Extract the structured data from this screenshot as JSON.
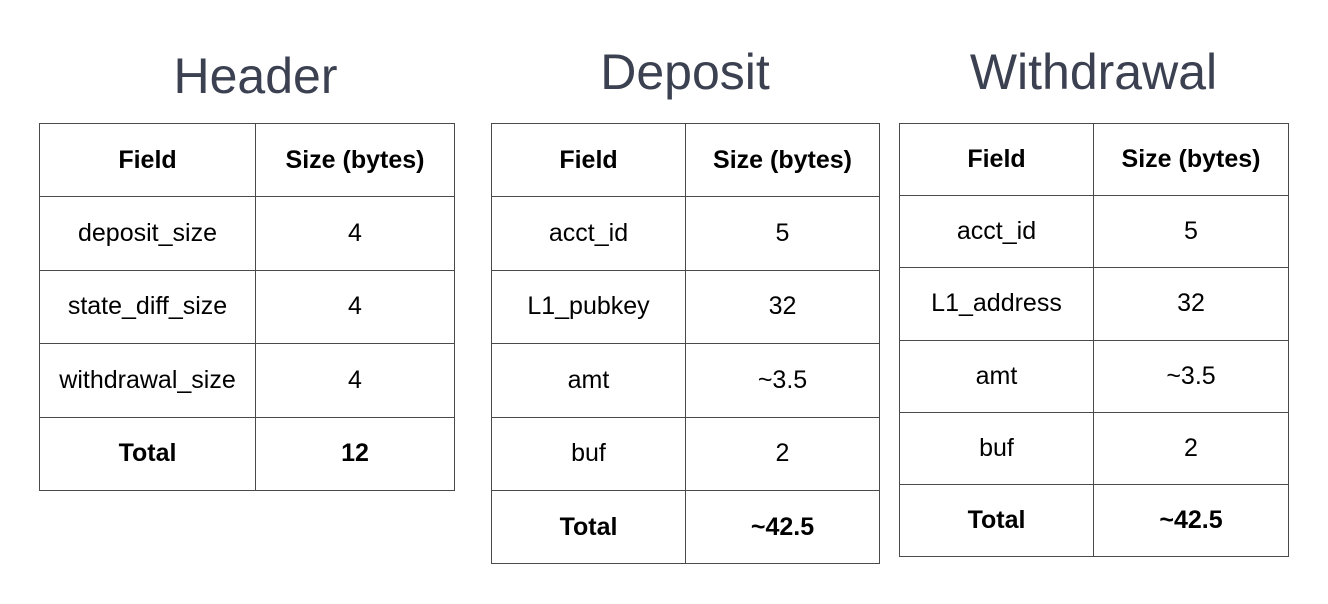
{
  "header": {
    "title": "Header",
    "columns": [
      "Field",
      "Size (bytes)"
    ],
    "rows": [
      {
        "field": "deposit_size",
        "size": "4"
      },
      {
        "field": "state_diff_size",
        "size": "4"
      },
      {
        "field": "withdrawal_size",
        "size": "4"
      }
    ],
    "total": {
      "label": "Total",
      "size": "12"
    }
  },
  "deposit": {
    "title": "Deposit",
    "columns": [
      "Field",
      "Size (bytes)"
    ],
    "rows": [
      {
        "field": "acct_id",
        "size": "5"
      },
      {
        "field": "L1_pubkey",
        "size": "32"
      },
      {
        "field": "amt",
        "size": "~3.5"
      },
      {
        "field": "buf",
        "size": "2"
      }
    ],
    "total": {
      "label": "Total",
      "size": "~42.5"
    }
  },
  "withdrawal": {
    "title": "Withdrawal",
    "columns": [
      "Field",
      "Size (bytes)"
    ],
    "rows": [
      {
        "field": "acct_id",
        "size": "5"
      },
      {
        "field": "L1_address",
        "size": "32"
      },
      {
        "field": "amt",
        "size": "~3.5"
      },
      {
        "field": "buf",
        "size": "2"
      }
    ],
    "total": {
      "label": "Total",
      "size": "~42.5"
    }
  },
  "colors": {
    "title": "#3c4151",
    "border": "#4a4a4a",
    "background": "#ffffff"
  }
}
